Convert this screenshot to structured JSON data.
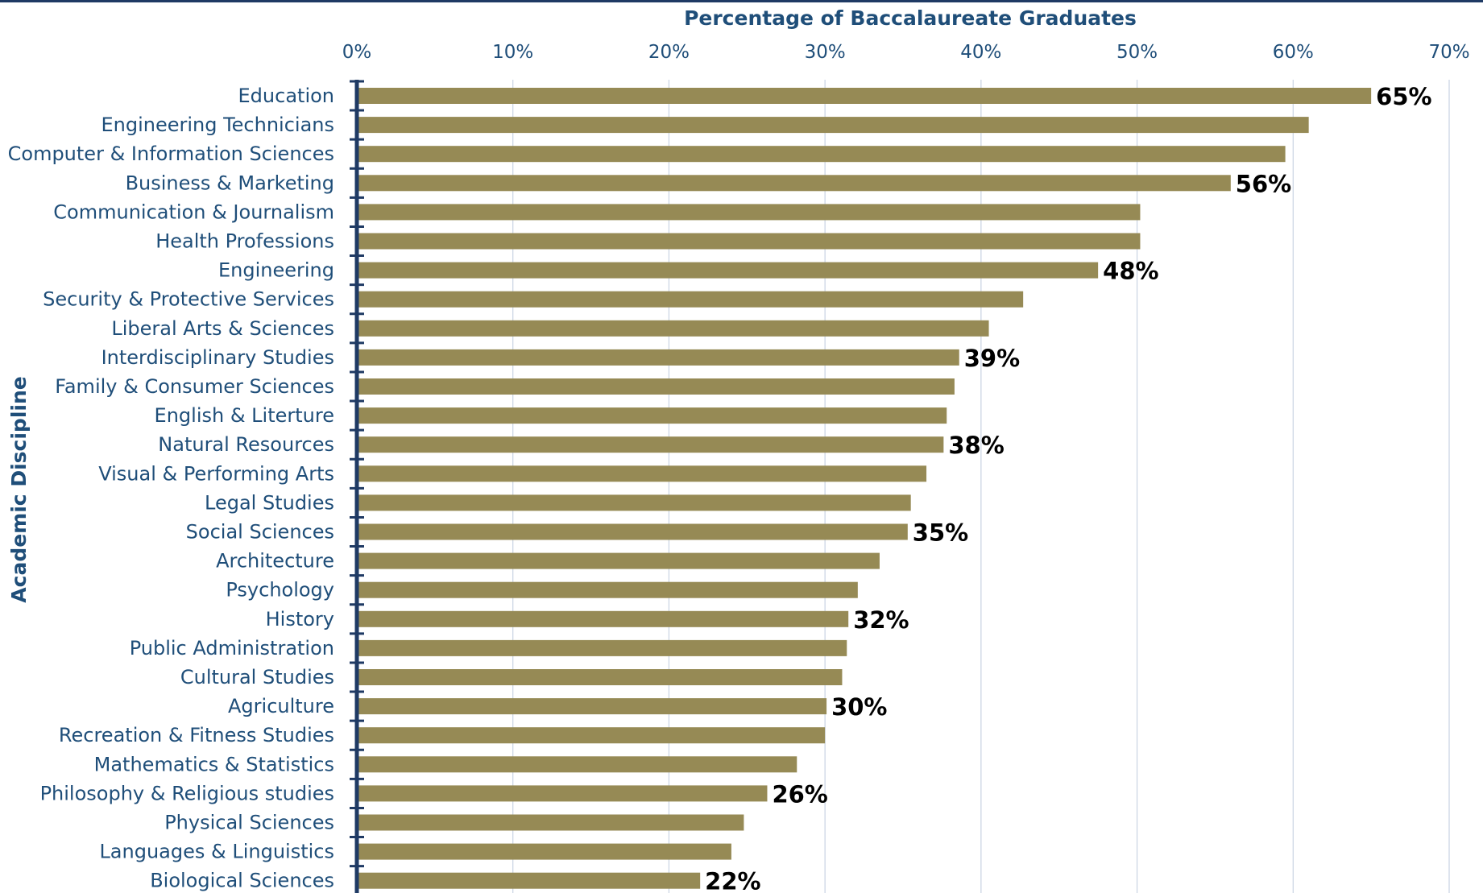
{
  "colors": {
    "bar": "#968a55",
    "axis": "#1f3a64",
    "text": "#1f4e79",
    "grid": "#c9d3e3",
    "label": "#000000"
  },
  "chart_data": {
    "type": "bar",
    "orientation": "horizontal",
    "title": "",
    "xlabel": "Percentage of Baccalaureate Graduates",
    "ylabel": "Academic Discipline",
    "xlim": [
      0,
      70
    ],
    "x_ticks": [
      0,
      10,
      20,
      30,
      40,
      50,
      60,
      70
    ],
    "x_tick_labels": [
      "0%",
      "10%",
      "20%",
      "30%",
      "40%",
      "50%",
      "60%",
      "70%"
    ],
    "grid": "vertical gridlines",
    "categories": [
      "Education",
      "Engineering Technicians",
      "Computer & Information Sciences",
      "Business & Marketing",
      "Communication & Journalism",
      "Health Professions",
      "Engineering",
      "Security & Protective Services",
      "Liberal Arts & Sciences",
      "Interdisciplinary Studies",
      "Family & Consumer Sciences",
      "English & Literture",
      "Natural Resources",
      "Visual & Performing Arts",
      "Legal Studies",
      "Social Sciences",
      "Architecture",
      "Psychology",
      "History",
      "Public Administration",
      "Cultural Studies",
      "Agriculture",
      "Recreation & Fitness Studies",
      "Mathematics & Statistics",
      "Philosophy & Religious studies",
      "Physical Sciences",
      "Languages & Linguistics",
      "Biological Sciences"
    ],
    "values": [
      65,
      61,
      59.5,
      56,
      50.2,
      50.2,
      47.5,
      42.7,
      40.5,
      38.6,
      38.3,
      37.8,
      37.6,
      36.5,
      35.5,
      35.3,
      33.5,
      32.1,
      31.5,
      31.4,
      31.1,
      30.1,
      30.0,
      28.2,
      26.3,
      24.8,
      24.0,
      22.0
    ],
    "data_labels": [
      "65%",
      "",
      "",
      "56%",
      "",
      "",
      "48%",
      "",
      "",
      "39%",
      "",
      "",
      "38%",
      "",
      "",
      "35%",
      "",
      "",
      "32%",
      "",
      "",
      "30%",
      "",
      "",
      "26%",
      "",
      "",
      "22%"
    ]
  }
}
